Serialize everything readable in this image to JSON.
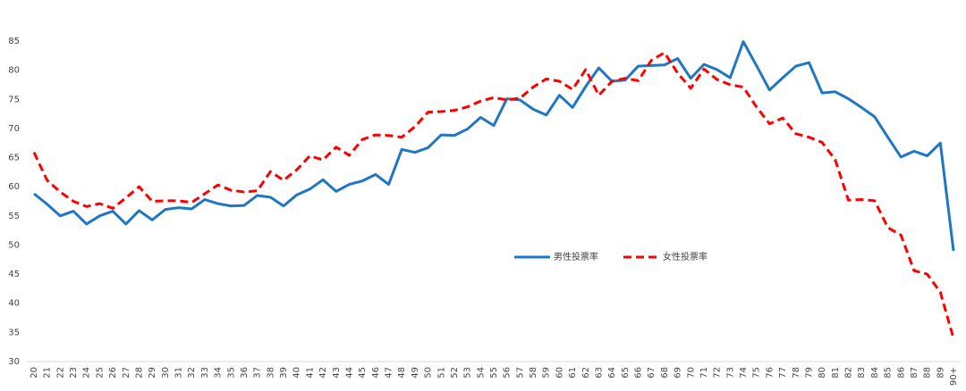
{
  "chart_data": {
    "type": "line",
    "categories": [
      "20",
      "21",
      "22",
      "23",
      "24",
      "25",
      "26",
      "27",
      "28",
      "29",
      "30",
      "31",
      "32",
      "33",
      "34",
      "35",
      "36",
      "37",
      "38",
      "39",
      "40",
      "41",
      "42",
      "43",
      "44",
      "45",
      "46",
      "47",
      "48",
      "49",
      "50",
      "51",
      "52",
      "53",
      "54",
      "55",
      "56",
      "57",
      "58",
      "59",
      "60",
      "61",
      "62",
      "63",
      "64",
      "65",
      "66",
      "67",
      "68",
      "69",
      "70",
      "71",
      "72",
      "73",
      "74",
      "75",
      "76",
      "77",
      "78",
      "79",
      "80",
      "81",
      "82",
      "83",
      "84",
      "85",
      "86",
      "87",
      "88",
      "89",
      "90+"
    ],
    "series": [
      {
        "name": "男性投票率",
        "color": "#1f77c4",
        "dash": "solid",
        "values": [
          58.8,
          57.0,
          55.0,
          55.8,
          53.6,
          55.0,
          55.8,
          53.6,
          55.9,
          54.3,
          56.1,
          56.4,
          56.2,
          57.8,
          57.1,
          56.7,
          56.8,
          58.5,
          58.2,
          56.7,
          58.6,
          59.6,
          61.2,
          59.2,
          60.4,
          61.0,
          62.1,
          60.4,
          66.4,
          65.9,
          66.7,
          68.9,
          68.8,
          69.9,
          71.9,
          70.5,
          75.1,
          74.9,
          73.3,
          72.3,
          75.7,
          73.6,
          77.2,
          80.4,
          78.1,
          78.3,
          80.7,
          80.8,
          80.9,
          82.0,
          78.6,
          81.0,
          80.1,
          78.7,
          84.9,
          80.8,
          76.6,
          78.7,
          80.7,
          81.3,
          76.1,
          76.3,
          75.1,
          73.6,
          72.0,
          68.5,
          65.1,
          66.1,
          65.3,
          67.5,
          49.0
        ]
      },
      {
        "name": "女性投票率",
        "color": "#ff0000",
        "dash": "dashed",
        "values": [
          65.9,
          61.1,
          59.1,
          57.5,
          56.6,
          57.1,
          56.3,
          58.1,
          60.0,
          57.5,
          57.6,
          57.6,
          57.3,
          58.8,
          60.3,
          59.4,
          59.1,
          59.3,
          62.6,
          61.1,
          62.9,
          65.3,
          64.6,
          66.8,
          65.4,
          68.1,
          68.9,
          68.8,
          68.5,
          70.3,
          72.8,
          72.9,
          73.1,
          73.7,
          74.7,
          75.3,
          74.9,
          75.2,
          77.1,
          78.5,
          78.1,
          76.7,
          80.1,
          75.7,
          78.1,
          78.6,
          78.2,
          81.7,
          83.0,
          79.5,
          76.9,
          80.2,
          78.4,
          77.5,
          77.1,
          73.7,
          70.8,
          71.8,
          69.1,
          68.5,
          67.6,
          64.6,
          57.7,
          57.8,
          57.6,
          53.0,
          51.7,
          45.6,
          45.0,
          41.9,
          34.0
        ]
      }
    ],
    "ylim": [
      30,
      85
    ],
    "yticks": [
      30,
      35,
      40,
      45,
      50,
      55,
      60,
      65,
      70,
      75,
      80,
      85
    ],
    "grid": false
  }
}
